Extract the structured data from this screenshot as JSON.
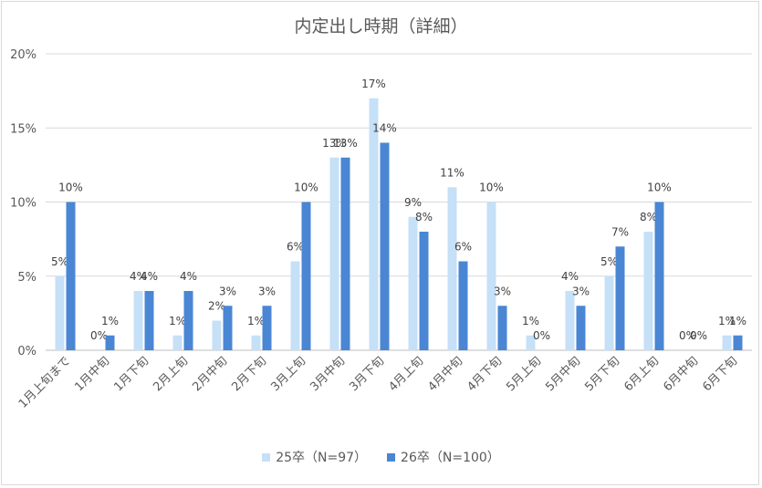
{
  "chart_data": {
    "type": "bar",
    "title": "内定出し時期（詳細）",
    "categories": [
      "1月上旬まで",
      "1月中旬",
      "1月下旬",
      "2月上旬",
      "2月中旬",
      "2月下旬",
      "3月上旬",
      "3月中旬",
      "3月下旬",
      "4月上旬",
      "4月中旬",
      "4月下旬",
      "5月上旬",
      "5月中旬",
      "5月下旬",
      "6月上旬",
      "6月中旬",
      "6月下旬"
    ],
    "series": [
      {
        "name": "25卒（N=97）",
        "color": "#c5e0f7",
        "values": [
          5,
          0,
          4,
          1,
          2,
          1,
          6,
          13,
          17,
          9,
          11,
          10,
          1,
          4,
          5,
          8,
          0,
          1
        ]
      },
      {
        "name": "26卒（N=100）",
        "color": "#4a86d4",
        "values": [
          10,
          1,
          4,
          4,
          3,
          3,
          10,
          13,
          14,
          8,
          6,
          3,
          0,
          3,
          7,
          10,
          0,
          1
        ]
      }
    ],
    "ylim": [
      0,
      20
    ],
    "yticks": [
      "0%",
      "5%",
      "10%",
      "15%",
      "20%"
    ],
    "grid": true,
    "legend": "bottom"
  }
}
